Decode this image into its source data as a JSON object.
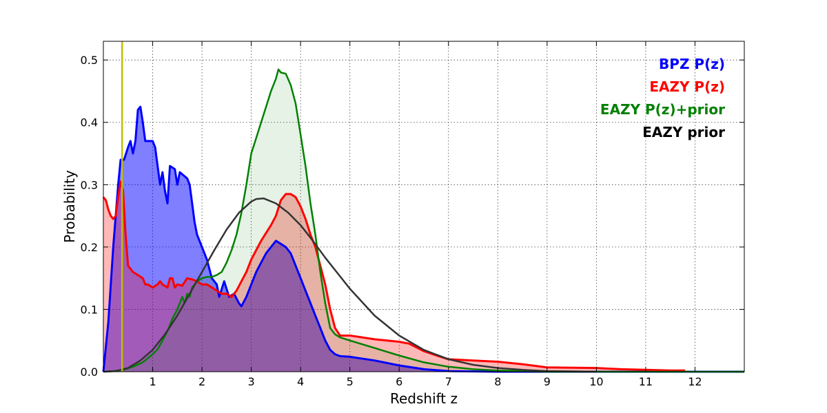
{
  "chart_data": {
    "type": "area",
    "xlabel": "Redshift z",
    "ylabel": "Probability",
    "xlim": [
      0,
      13
    ],
    "ylim": [
      0,
      0.53
    ],
    "x_ticks": [
      1,
      2,
      3,
      4,
      5,
      6,
      7,
      8,
      9,
      10,
      11,
      12
    ],
    "y_ticks": [
      0.0,
      0.1,
      0.2,
      0.3,
      0.4,
      0.5
    ],
    "grid": true,
    "legend_position": "top-right",
    "vertical_marker": {
      "x": 0.38,
      "color": "#bfbf00"
    },
    "series": [
      {
        "name": "BPZ P(z)",
        "color": "#0000ff",
        "fill": "#0000ff",
        "fill_opacity": 0.5,
        "points": [
          [
            0,
            0
          ],
          [
            0.1,
            0.08
          ],
          [
            0.2,
            0.2
          ],
          [
            0.3,
            0.3
          ],
          [
            0.35,
            0.34
          ],
          [
            0.42,
            0.34
          ],
          [
            0.5,
            0.36
          ],
          [
            0.55,
            0.37
          ],
          [
            0.6,
            0.35
          ],
          [
            0.65,
            0.37
          ],
          [
            0.7,
            0.42
          ],
          [
            0.75,
            0.425
          ],
          [
            0.8,
            0.4
          ],
          [
            0.85,
            0.37
          ],
          [
            0.9,
            0.37
          ],
          [
            1.0,
            0.37
          ],
          [
            1.05,
            0.36
          ],
          [
            1.1,
            0.33
          ],
          [
            1.15,
            0.3
          ],
          [
            1.2,
            0.32
          ],
          [
            1.25,
            0.29
          ],
          [
            1.3,
            0.27
          ],
          [
            1.35,
            0.33
          ],
          [
            1.45,
            0.325
          ],
          [
            1.5,
            0.3
          ],
          [
            1.55,
            0.32
          ],
          [
            1.7,
            0.31
          ],
          [
            1.75,
            0.3
          ],
          [
            1.8,
            0.27
          ],
          [
            1.85,
            0.24
          ],
          [
            1.9,
            0.22
          ],
          [
            2.0,
            0.2
          ],
          [
            2.1,
            0.18
          ],
          [
            2.2,
            0.15
          ],
          [
            2.3,
            0.14
          ],
          [
            2.35,
            0.12
          ],
          [
            2.45,
            0.145
          ],
          [
            2.55,
            0.12
          ],
          [
            2.65,
            0.125
          ],
          [
            2.75,
            0.11
          ],
          [
            2.8,
            0.105
          ],
          [
            2.9,
            0.12
          ],
          [
            3.0,
            0.14
          ],
          [
            3.1,
            0.16
          ],
          [
            3.2,
            0.175
          ],
          [
            3.3,
            0.19
          ],
          [
            3.4,
            0.2
          ],
          [
            3.5,
            0.21
          ],
          [
            3.6,
            0.205
          ],
          [
            3.7,
            0.2
          ],
          [
            3.8,
            0.19
          ],
          [
            3.9,
            0.17
          ],
          [
            4.0,
            0.15
          ],
          [
            4.1,
            0.13
          ],
          [
            4.2,
            0.11
          ],
          [
            4.3,
            0.09
          ],
          [
            4.4,
            0.07
          ],
          [
            4.5,
            0.05
          ],
          [
            4.6,
            0.035
          ],
          [
            4.7,
            0.028
          ],
          [
            4.8,
            0.025
          ],
          [
            5.0,
            0.024
          ],
          [
            5.5,
            0.018
          ],
          [
            6.0,
            0.01
          ],
          [
            6.5,
            0.004
          ],
          [
            7.0,
            0.001
          ],
          [
            8.0,
            0
          ],
          [
            13,
            0
          ]
        ]
      },
      {
        "name": "EAZY P(z)",
        "color": "#ff0000",
        "fill": "#ff0000",
        "fill_opacity": 0.28,
        "points": [
          [
            0,
            0.28
          ],
          [
            0.05,
            0.275
          ],
          [
            0.1,
            0.26
          ],
          [
            0.15,
            0.25
          ],
          [
            0.2,
            0.245
          ],
          [
            0.25,
            0.25
          ],
          [
            0.3,
            0.28
          ],
          [
            0.35,
            0.305
          ],
          [
            0.4,
            0.29
          ],
          [
            0.45,
            0.22
          ],
          [
            0.5,
            0.17
          ],
          [
            0.6,
            0.16
          ],
          [
            0.7,
            0.155
          ],
          [
            0.8,
            0.15
          ],
          [
            0.85,
            0.14
          ],
          [
            0.9,
            0.14
          ],
          [
            1.0,
            0.135
          ],
          [
            1.1,
            0.14
          ],
          [
            1.15,
            0.145
          ],
          [
            1.2,
            0.14
          ],
          [
            1.3,
            0.135
          ],
          [
            1.35,
            0.15
          ],
          [
            1.4,
            0.15
          ],
          [
            1.45,
            0.135
          ],
          [
            1.5,
            0.14
          ],
          [
            1.6,
            0.138
          ],
          [
            1.7,
            0.15
          ],
          [
            1.8,
            0.148
          ],
          [
            1.9,
            0.145
          ],
          [
            2.0,
            0.14
          ],
          [
            2.1,
            0.14
          ],
          [
            2.2,
            0.135
          ],
          [
            2.3,
            0.13
          ],
          [
            2.4,
            0.125
          ],
          [
            2.5,
            0.125
          ],
          [
            2.6,
            0.12
          ],
          [
            2.7,
            0.13
          ],
          [
            2.8,
            0.145
          ],
          [
            2.9,
            0.16
          ],
          [
            3.0,
            0.18
          ],
          [
            3.2,
            0.21
          ],
          [
            3.4,
            0.235
          ],
          [
            3.5,
            0.25
          ],
          [
            3.6,
            0.275
          ],
          [
            3.7,
            0.285
          ],
          [
            3.8,
            0.285
          ],
          [
            3.9,
            0.28
          ],
          [
            4.0,
            0.265
          ],
          [
            4.1,
            0.245
          ],
          [
            4.2,
            0.22
          ],
          [
            4.3,
            0.2
          ],
          [
            4.4,
            0.17
          ],
          [
            4.5,
            0.14
          ],
          [
            4.6,
            0.1
          ],
          [
            4.7,
            0.07
          ],
          [
            4.8,
            0.058
          ],
          [
            5.0,
            0.058
          ],
          [
            5.5,
            0.052
          ],
          [
            6.0,
            0.048
          ],
          [
            6.2,
            0.045
          ],
          [
            6.5,
            0.033
          ],
          [
            6.8,
            0.025
          ],
          [
            7.0,
            0.02
          ],
          [
            7.5,
            0.018
          ],
          [
            8.0,
            0.016
          ],
          [
            8.5,
            0.012
          ],
          [
            9.0,
            0.007
          ],
          [
            10.0,
            0.006
          ],
          [
            10.5,
            0.004
          ],
          [
            11.0,
            0.003
          ],
          [
            11.5,
            0.002
          ],
          [
            11.8,
            0.002
          ]
        ]
      },
      {
        "name": "EAZY P(z)+prior",
        "color": "#008000",
        "fill": "#008000",
        "fill_opacity": 0.1,
        "points": [
          [
            0,
            0
          ],
          [
            0.2,
            0.001
          ],
          [
            0.4,
            0.003
          ],
          [
            0.6,
            0.008
          ],
          [
            0.8,
            0.015
          ],
          [
            1.0,
            0.028
          ],
          [
            1.1,
            0.036
          ],
          [
            1.2,
            0.05
          ],
          [
            1.3,
            0.065
          ],
          [
            1.4,
            0.085
          ],
          [
            1.5,
            0.1
          ],
          [
            1.55,
            0.11
          ],
          [
            1.6,
            0.12
          ],
          [
            1.65,
            0.11
          ],
          [
            1.7,
            0.125
          ],
          [
            1.75,
            0.12
          ],
          [
            1.8,
            0.135
          ],
          [
            1.9,
            0.145
          ],
          [
            2.0,
            0.15
          ],
          [
            2.1,
            0.152
          ],
          [
            2.2,
            0.152
          ],
          [
            2.3,
            0.155
          ],
          [
            2.4,
            0.16
          ],
          [
            2.5,
            0.175
          ],
          [
            2.6,
            0.195
          ],
          [
            2.7,
            0.22
          ],
          [
            2.8,
            0.255
          ],
          [
            2.9,
            0.3
          ],
          [
            3.0,
            0.35
          ],
          [
            3.1,
            0.375
          ],
          [
            3.2,
            0.4
          ],
          [
            3.3,
            0.425
          ],
          [
            3.4,
            0.45
          ],
          [
            3.5,
            0.47
          ],
          [
            3.55,
            0.485
          ],
          [
            3.6,
            0.48
          ],
          [
            3.7,
            0.478
          ],
          [
            3.8,
            0.46
          ],
          [
            3.9,
            0.43
          ],
          [
            4.0,
            0.38
          ],
          [
            4.1,
            0.33
          ],
          [
            4.2,
            0.27
          ],
          [
            4.3,
            0.22
          ],
          [
            4.4,
            0.16
          ],
          [
            4.5,
            0.11
          ],
          [
            4.6,
            0.07
          ],
          [
            4.7,
            0.06
          ],
          [
            4.8,
            0.055
          ],
          [
            5.0,
            0.05
          ],
          [
            5.5,
            0.038
          ],
          [
            6.0,
            0.026
          ],
          [
            6.5,
            0.015
          ],
          [
            7.0,
            0.008
          ],
          [
            7.5,
            0.004
          ],
          [
            8.0,
            0.002
          ],
          [
            8.5,
            0.001
          ],
          [
            9.0,
            0
          ],
          [
            13,
            0
          ]
        ]
      },
      {
        "name": "EAZY prior",
        "color": "#333333",
        "fill": null,
        "fill_opacity": 0,
        "points": [
          [
            0,
            0
          ],
          [
            0.25,
            0.001
          ],
          [
            0.5,
            0.006
          ],
          [
            0.75,
            0.018
          ],
          [
            1.0,
            0.035
          ],
          [
            1.25,
            0.06
          ],
          [
            1.5,
            0.09
          ],
          [
            1.75,
            0.125
          ],
          [
            2.0,
            0.16
          ],
          [
            2.25,
            0.195
          ],
          [
            2.5,
            0.228
          ],
          [
            2.75,
            0.255
          ],
          [
            3.0,
            0.273
          ],
          [
            3.1,
            0.277
          ],
          [
            3.25,
            0.278
          ],
          [
            3.5,
            0.27
          ],
          [
            3.75,
            0.255
          ],
          [
            4.0,
            0.235
          ],
          [
            4.25,
            0.21
          ],
          [
            4.5,
            0.183
          ],
          [
            4.75,
            0.158
          ],
          [
            5.0,
            0.133
          ],
          [
            5.5,
            0.09
          ],
          [
            6.0,
            0.058
          ],
          [
            6.5,
            0.035
          ],
          [
            7.0,
            0.02
          ],
          [
            7.5,
            0.011
          ],
          [
            8.0,
            0.006
          ],
          [
            8.5,
            0.003
          ],
          [
            9.0,
            0.001
          ],
          [
            9.5,
            0.0005
          ],
          [
            10.0,
            0
          ]
        ]
      }
    ]
  },
  "legend": [
    {
      "label": "BPZ P(z)",
      "color": "#0000ff"
    },
    {
      "label": "EAZY P(z)",
      "color": "#ff0000"
    },
    {
      "label": "EAZY P(z)+prior",
      "color": "#008000"
    },
    {
      "label": "EAZY prior",
      "color": "#000000"
    }
  ]
}
